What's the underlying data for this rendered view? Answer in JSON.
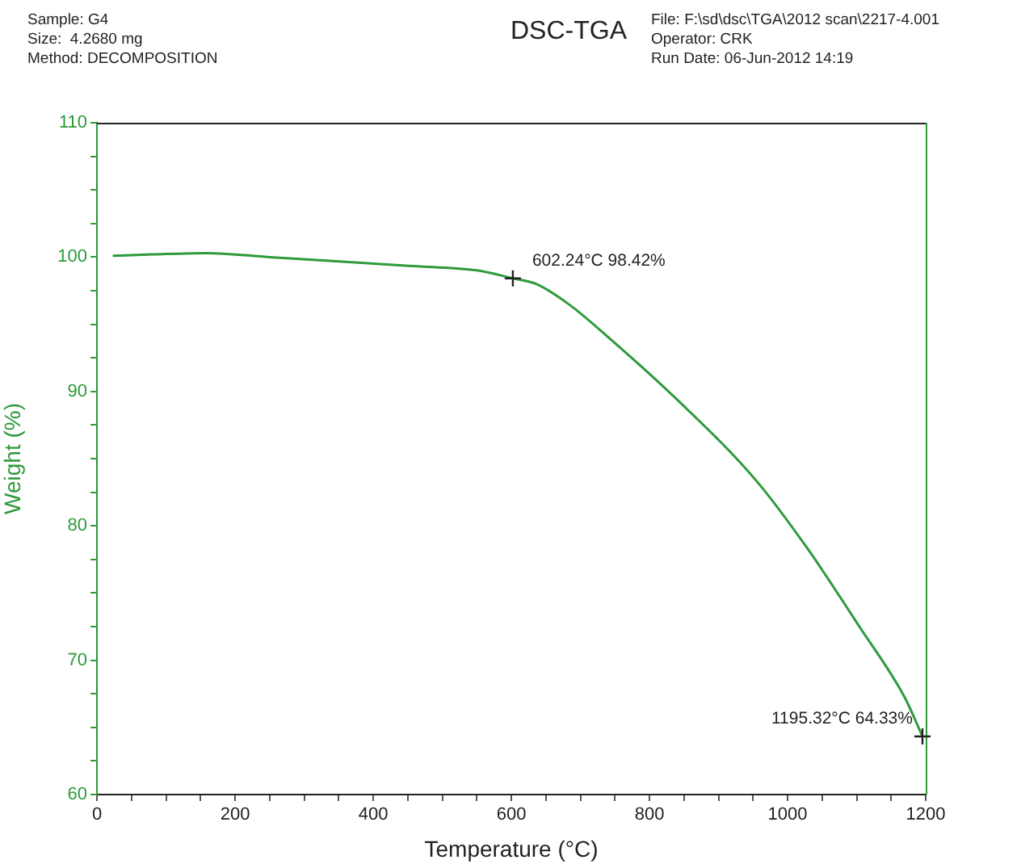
{
  "chart_data": {
    "type": "line",
    "title": "DSC-TGA",
    "xlabel": "Temperature (°C)",
    "ylabel": "Weight (%)",
    "annotations": [
      "Sample: G4",
      "Size:  4.2680 mg",
      "Method: DECOMPOSITION",
      "File: F:\\sd\\dsc\\TGA\\2012 scan\\2217-4.001",
      "Operator: CRK",
      "Run Date: 06-Jun-2012 14:19",
      {
        "text": "602.24°C 98.42%",
        "x": 602.24,
        "y": 98.42
      },
      {
        "text": "1195.32°C 64.33%",
        "x": 1195.32,
        "y": 64.33
      }
    ],
    "series": [
      {
        "color": "#2e9a3a",
        "x": [
          23,
          80,
          159,
          250,
          346,
          468,
          552,
          602.24,
          636,
          683,
          739,
          842,
          954,
          1029,
          1104,
          1170,
          1195.32
        ],
        "values": [
          100.1,
          100.2,
          100.3,
          100.0,
          99.7,
          99.3,
          99.0,
          98.42,
          98.0,
          96.5,
          94.1,
          89.3,
          83.4,
          78.3,
          72.5,
          67.2,
          64.33
        ]
      }
    ],
    "xlim": [
      0,
      1200
    ],
    "ylim": [
      60,
      110
    ],
    "xticks": [
      0,
      {
        "value": 50,
        "label": null
      },
      {
        "value": 100,
        "label": null
      },
      {
        "value": 150,
        "label": null
      },
      200,
      {
        "value": 250,
        "label": null
      },
      {
        "value": 300,
        "label": null
      },
      {
        "value": 350,
        "label": null
      },
      400,
      {
        "value": 450,
        "label": null
      },
      {
        "value": 500,
        "label": null
      },
      {
        "value": 550,
        "label": null
      },
      600,
      {
        "value": 650,
        "label": null
      },
      {
        "value": 700,
        "label": null
      },
      {
        "value": 750,
        "label": null
      },
      800,
      {
        "value": 850,
        "label": null
      },
      {
        "value": 900,
        "label": null
      },
      {
        "value": 950,
        "label": null
      },
      1000,
      {
        "value": 1050,
        "label": null
      },
      {
        "value": 1100,
        "label": null
      },
      {
        "value": 1150,
        "label": null
      },
      1200
    ],
    "yticks": [
      60,
      {
        "value": 62.5,
        "label": null
      },
      {
        "value": 65,
        "label": null
      },
      {
        "value": 67.5,
        "label": null
      },
      70,
      {
        "value": 72.5,
        "label": null
      },
      {
        "value": 75,
        "label": null
      },
      {
        "value": 77.5,
        "label": null
      },
      80,
      {
        "value": 82.5,
        "label": null
      },
      {
        "value": 85,
        "label": null
      },
      {
        "value": 87.5,
        "label": null
      },
      90,
      {
        "value": 92.5,
        "label": null
      },
      {
        "value": 95,
        "label": null
      },
      {
        "value": 97.5,
        "label": null
      },
      100,
      {
        "value": 102.5,
        "label": null
      },
      {
        "value": 105,
        "label": null
      },
      {
        "value": 107.5,
        "label": null
      },
      110
    ],
    "grid": false,
    "legend": false,
    "marker": "none",
    "line_style": "solid"
  }
}
